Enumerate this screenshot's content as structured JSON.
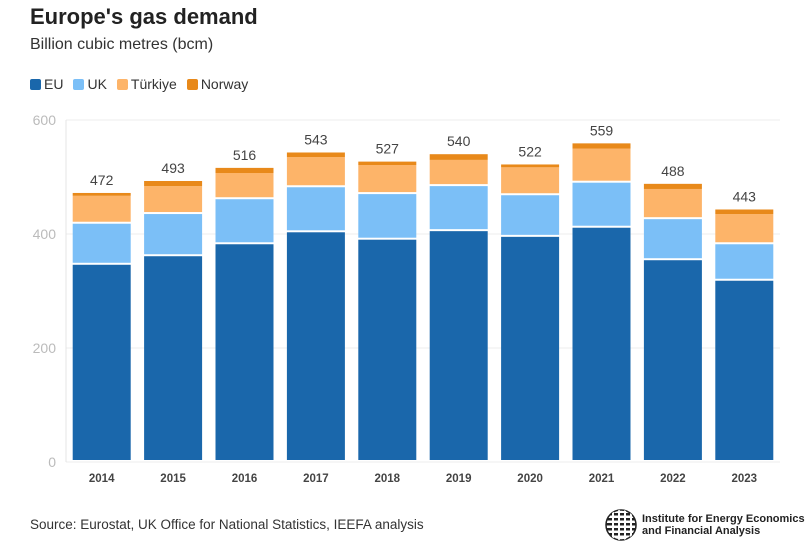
{
  "chart_data": {
    "type": "bar",
    "stacked": true,
    "title": "Europe's gas demand",
    "subtitle": "Billion cubic metres (bcm)",
    "categories": [
      "2014",
      "2015",
      "2016",
      "2017",
      "2018",
      "2019",
      "2020",
      "2021",
      "2022",
      "2023"
    ],
    "series": [
      {
        "name": "EU",
        "color": "#1a67ab",
        "values": [
          346,
          361,
          382,
          403,
          390,
          405,
          395,
          411,
          354,
          318
        ]
      },
      {
        "name": "UK",
        "color": "#7bbff7",
        "values": [
          72,
          74,
          79,
          79,
          80,
          79,
          73,
          79,
          72,
          64
        ]
      },
      {
        "name": "Türkiye",
        "color": "#fdb469",
        "values": [
          49,
          49,
          46,
          53,
          51,
          46,
          49,
          60,
          53,
          53
        ]
      },
      {
        "name": "Norway",
        "color": "#e8891a",
        "values": [
          5,
          9,
          9,
          8,
          6,
          10,
          5,
          9,
          9,
          8
        ]
      }
    ],
    "totals": [
      "472",
      "493",
      "516",
      "543",
      "527",
      "540",
      "522",
      "559",
      "488",
      "443"
    ],
    "ylim": [
      0,
      600
    ],
    "yticks": [
      "0",
      "200",
      "400",
      "600"
    ],
    "legend": "top-left",
    "grid": true
  },
  "source": "Source: Eurostat, UK Office for National Statistics, IEEFA analysis",
  "logo": {
    "line1": "Institute for Energy Economics",
    "line2": "and Financial Analysis"
  }
}
